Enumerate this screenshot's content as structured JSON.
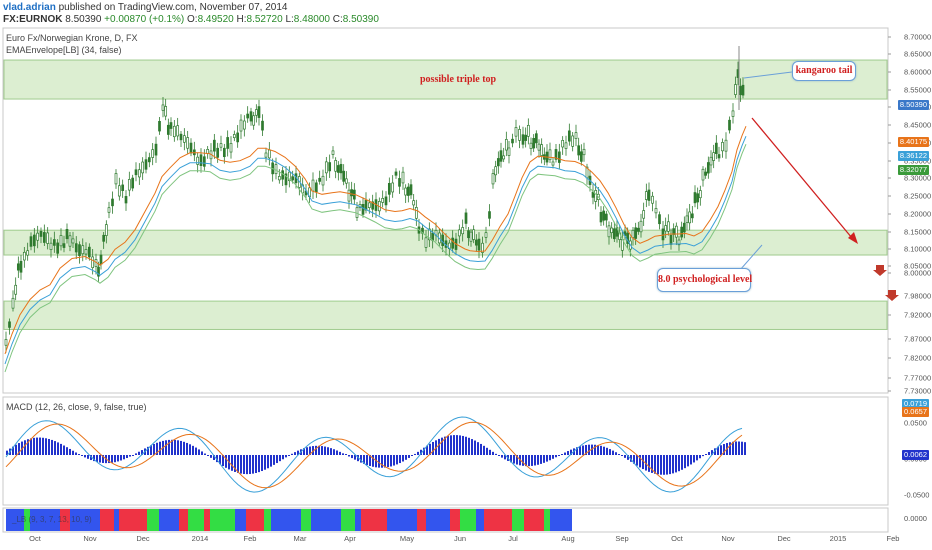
{
  "header": {
    "author": "vlad.adrian",
    "published_text": "published on TradingView.com, November 07, 2014",
    "symbol": "FX:EURNOK",
    "last": "8.50390",
    "change": "+0.00870 (+0.1%)",
    "open_label": "O:",
    "open": "8.49520",
    "high_label": "H:",
    "high": "8.52720",
    "low_label": "L:",
    "low": "8.48000",
    "close_label": "C:",
    "close": "8.50390"
  },
  "main_pane": {
    "title": "Euro Fx/Norwegian Krone, D, FX",
    "indicator": "EMAEnvelope[LB] (34, false)",
    "price_ticks": [
      "8.70000",
      "8.65000",
      "8.60000",
      "8.55000",
      "8.50000",
      "8.45000",
      "8.40000",
      "8.35000",
      "8.30000",
      "8.25000",
      "8.20000",
      "8.15000",
      "8.10000",
      "8.05000",
      "8.00000",
      "7.98000",
      "7.92000",
      "7.87000",
      "7.82000",
      "7.77000",
      "7.73000"
    ],
    "price_tags": [
      {
        "text": "8.50390",
        "color": "#3a78c9"
      },
      {
        "text": "8.40175",
        "color": "#e8741a"
      },
      {
        "text": "8.36122",
        "color": "#3aa0d8"
      },
      {
        "text": "8.32077",
        "color": "#3a9a3a"
      }
    ],
    "annotations": {
      "triple_top": "possible triple top",
      "kangaroo": "kangaroo tail",
      "psych": "8.0 psychological level"
    }
  },
  "macd_pane": {
    "title": "MACD (12, 26, close, 9, false, true)",
    "ticks": [
      "0.0500",
      "0.0000",
      "-0.0500"
    ],
    "tags": [
      {
        "text": "0.0719",
        "color": "#3aa0d8"
      },
      {
        "text": "0.0657",
        "color": "#e8741a"
      },
      {
        "text": "0.0062",
        "color": "#2233cc"
      }
    ]
  },
  "third_pane": {
    "title": "_LB (9, 3, 7, 13, 10, 9)",
    "tick": "0.0000"
  },
  "time_axis": [
    "Oct",
    "Nov",
    "Dec",
    "2014",
    "Feb",
    "Mar",
    "Apr",
    "May",
    "Jun",
    "Jul",
    "Aug",
    "Sep",
    "Oct",
    "Nov",
    "Dec",
    "2015",
    "Feb"
  ],
  "colors": {
    "zone_fill": "#d6ecc9",
    "zone_stroke": "#8fc27a",
    "candle": "#2f7a2f",
    "ema_upper": "#e8741a",
    "ema_mid": "#3aa0d8",
    "ema_lower": "#7fc47f",
    "macd_line": "#3aa0d8",
    "signal_line": "#e8741a",
    "hist": "#2233cc",
    "annot_red": "#d02020"
  }
}
